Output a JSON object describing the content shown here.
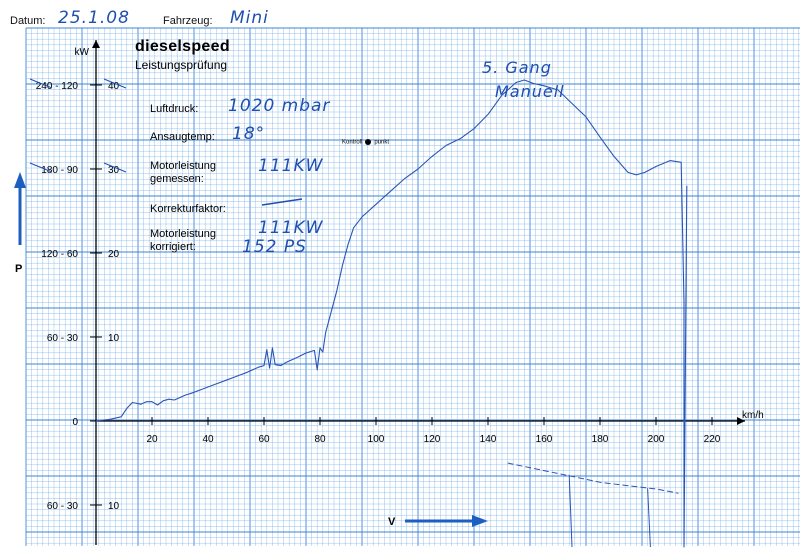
{
  "header": {
    "datum_label": "Datum:",
    "datum_value": "25.1.08",
    "fahrzeug_label": "Fahrzeug:",
    "fahrzeug_value": "Mini"
  },
  "brand": {
    "name": "dieselspeed",
    "subtitle": "Leistungsprüfung"
  },
  "fields": {
    "luftdruck_label": "Luftdruck:",
    "luftdruck_value": "1020 mbar",
    "ansaugtemp_label": "Ansaugtemp:",
    "ansaugtemp_value": "18°",
    "motorleistung_gemessen_label_1": "Motorleistung",
    "motorleistung_gemessen_label_2": "gemessen:",
    "motorleistung_gemessen_value": "111KW",
    "korrekturfaktor_label": "Korrekturfaktor:",
    "motorleistung_korrigiert_label_1": "Motorleistung",
    "motorleistung_korrigiert_label_2": "korrigiert:",
    "motorleistung_korrigiert_value_1": "111KW",
    "motorleistung_korrigiert_value_2": "152 PS"
  },
  "notes": {
    "gear": "5. Gang",
    "mode": "Manuell"
  },
  "kontroll": {
    "left": "Kontroll",
    "right": "punkt"
  },
  "colors": {
    "grid": "#7fb3e6",
    "grid_major": "#3f86d6",
    "ink": "#1f4fb0",
    "axis": "#000000",
    "pen": "#2a55b8"
  },
  "chart_data": {
    "type": "line",
    "x_unit_label": "km/h",
    "y_unit_label": "kW",
    "x_ticks": [
      20,
      40,
      60,
      80,
      100,
      120,
      140,
      160,
      180,
      200,
      220
    ],
    "y_ticks": [
      {
        "value": 40,
        "ps_kw": "240 - 120",
        "kw": "40"
      },
      {
        "value": 30,
        "ps_kw": "180 - 90",
        "kw": "30"
      },
      {
        "value": 20,
        "ps_kw": "120 - 60",
        "kw": "20"
      },
      {
        "value": 10,
        "ps_kw": "60 - 30",
        "kw": "10"
      },
      {
        "value": 0,
        "ps_kw": "0",
        "kw": ""
      },
      {
        "value": -10,
        "ps_kw": "60 - 30",
        "kw": "10"
      }
    ],
    "power_arrow_label": "P",
    "speed_arrow_label": "V",
    "xlim": [
      0,
      222
    ],
    "ylim": [
      -13,
      47
    ],
    "series": [
      {
        "values_x": [
          0,
          5,
          9,
          11,
          13,
          16,
          18,
          20,
          22,
          24,
          26,
          28,
          30,
          32,
          34,
          38,
          42,
          46,
          50,
          54,
          58,
          60,
          61,
          62,
          63,
          64,
          66,
          68,
          72,
          75,
          78,
          79,
          80,
          81,
          82,
          84,
          86,
          88,
          90,
          92,
          95,
          100,
          105,
          110,
          115,
          120,
          125,
          130,
          135,
          140,
          145,
          150,
          153,
          156,
          160,
          165,
          170,
          175,
          180,
          185,
          190,
          193,
          196,
          200,
          205,
          209,
          210,
          210,
          211
        ],
        "values_y": [
          0,
          0.2,
          0.5,
          1.5,
          2.2,
          2.0,
          2.3,
          2.3,
          1.9,
          2.4,
          2.6,
          2.5,
          2.8,
          3.1,
          3.3,
          3.8,
          4.3,
          4.8,
          5.3,
          5.8,
          6.4,
          6.6,
          8.5,
          6.3,
          8.7,
          6.7,
          6.6,
          7.0,
          7.6,
          8.1,
          8.4,
          6.1,
          8.7,
          8.2,
          10.5,
          13.0,
          15.5,
          18.5,
          21.0,
          23.0,
          24.3,
          25.8,
          27.3,
          28.8,
          30.0,
          31.5,
          32.8,
          33.6,
          34.8,
          36.5,
          38.8,
          40.3,
          40.6,
          40.2,
          39.9,
          39.4,
          37.8,
          36.2,
          33.8,
          31.5,
          29.6,
          29.3,
          29.6,
          30.3,
          31.0,
          30.8,
          14.0,
          -15.0,
          28.0
        ]
      }
    ],
    "lower_trace": {
      "values_x": [
        147,
        160,
        170,
        180,
        190,
        200,
        205,
        208
      ],
      "values_y": [
        -5.0,
        -5.9,
        -6.6,
        -7.3,
        -7.7,
        -8.1,
        -8.4,
        -8.6
      ]
    }
  }
}
